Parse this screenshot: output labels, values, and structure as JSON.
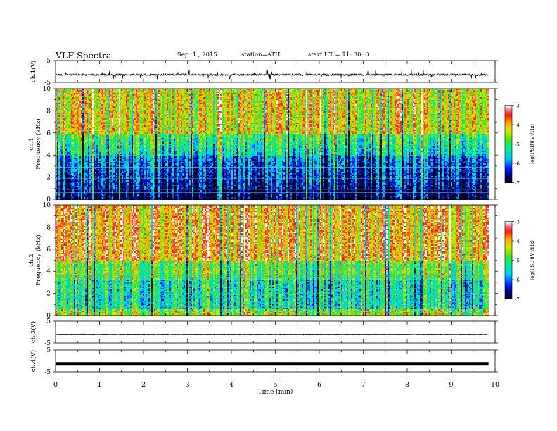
{
  "header": {
    "title": "VLF  Spectra",
    "date": "Sep. 1  , 2015",
    "station": "station=ATH",
    "start": "start  UT  =   11: 30: 0"
  },
  "chart_data": [
    {
      "type": "line",
      "name": "ch1-waveform",
      "ylabel": "ch.1(V)",
      "yticks": [
        "5",
        "-5"
      ],
      "ylim": [
        -5,
        5
      ],
      "baseline": -1.5
    },
    {
      "type": "heatmap",
      "name": "ch1-spectrogram",
      "ylabel": "ch.1",
      "ylabel2": "Frequency  (kHz)",
      "yticks": [
        "0",
        "2",
        "4",
        "6",
        "8",
        "10"
      ],
      "ylim": [
        0,
        10
      ],
      "colorbar": {
        "label": "log(PSD)(V²/Hz)",
        "ticks": [
          "-3",
          "-4",
          "-5",
          "-6",
          "-7"
        ],
        "range": [
          -7,
          -3
        ]
      }
    },
    {
      "type": "heatmap",
      "name": "ch2-spectrogram",
      "ylabel": "ch.2",
      "ylabel2": "Frequency  (kHz)",
      "yticks": [
        "0",
        "2",
        "4",
        "6",
        "8",
        "10"
      ],
      "ylim": [
        0,
        10
      ],
      "colorbar": {
        "label": "log(PSD)(V²/Hz)",
        "ticks": [
          "-3",
          "-4",
          "-5",
          "-6",
          "-7"
        ],
        "range": [
          -7,
          -3
        ]
      }
    },
    {
      "type": "line",
      "name": "ch3-waveform",
      "ylabel": "ch.3(V)",
      "yticks": [
        "5",
        "-5"
      ],
      "ylim": [
        -5,
        5
      ],
      "baseline": -1.0
    },
    {
      "type": "line",
      "name": "ch4-waveform",
      "ylabel": "ch.4(V)",
      "yticks": [
        "5",
        "-5"
      ],
      "ylim": [
        -5,
        5
      ],
      "baseline": -1.2
    }
  ],
  "xaxis": {
    "label": "Time  (min)",
    "ticks": [
      "0",
      "1",
      "2",
      "3",
      "4",
      "5",
      "6",
      "7",
      "8",
      "9",
      "10"
    ],
    "xlim": [
      0,
      10
    ],
    "data_end": 9.85
  }
}
